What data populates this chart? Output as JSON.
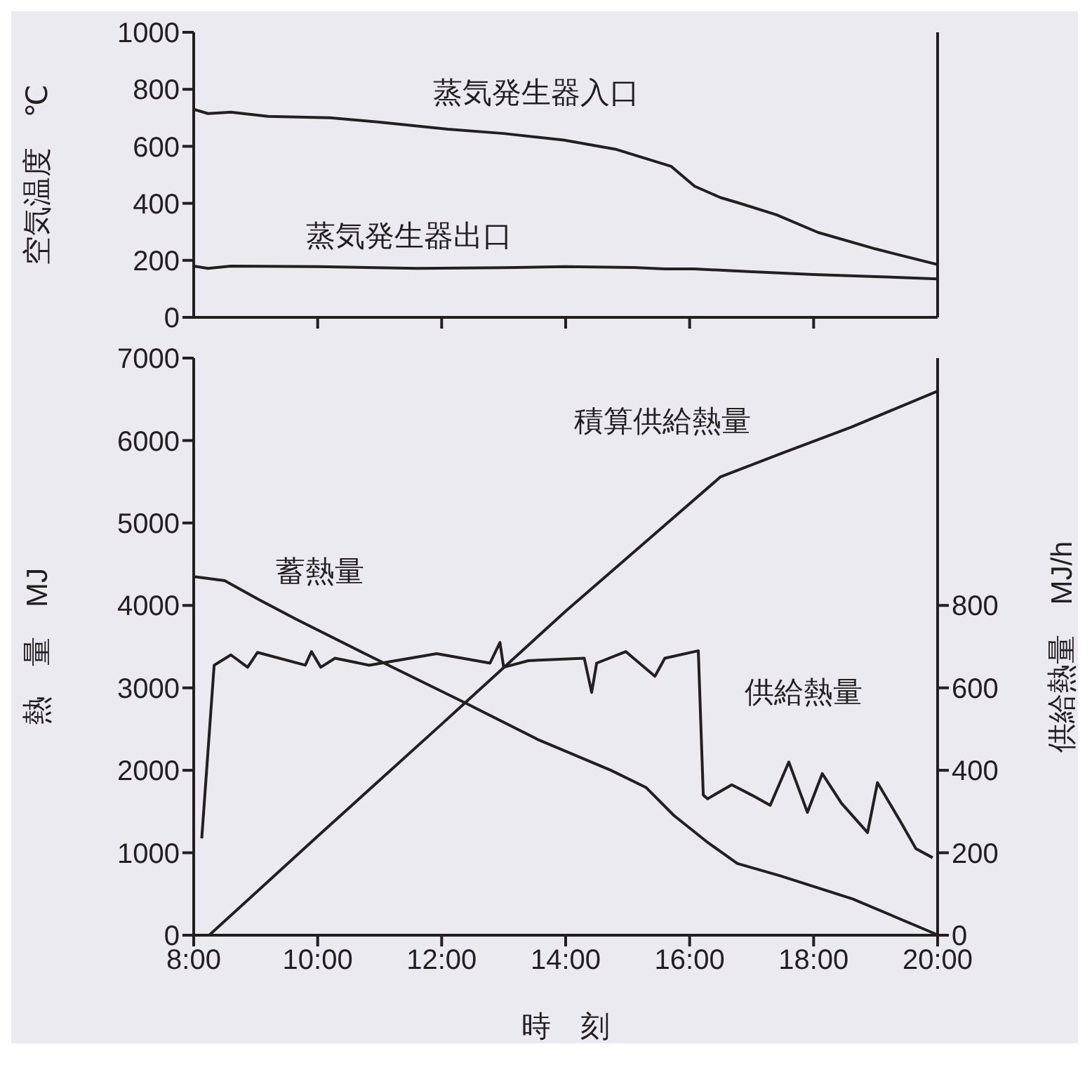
{
  "chart_data": [
    {
      "type": "line",
      "ylabel": "空気温度　℃",
      "xlim": [
        8,
        20
      ],
      "xticks": [
        {
          "value": 10,
          "label": null
        },
        {
          "value": 12,
          "label": null
        },
        {
          "value": 14,
          "label": null
        },
        {
          "value": 16,
          "label": null
        },
        {
          "value": 18,
          "label": null
        }
      ],
      "ylim": [
        0,
        1000
      ],
      "yticks": [
        0,
        200,
        400,
        600,
        800,
        1000
      ],
      "tick_labels": "y",
      "marker": "none",
      "line_style": "solid",
      "series": [
        {
          "name": "蒸気発生器入口",
          "color": "#231f20",
          "x": [
            8,
            8.23,
            8.6,
            9.2,
            10.2,
            11,
            12.1,
            13,
            13.97,
            14.8,
            15.7,
            16.08,
            16.5,
            16.78,
            17.4,
            18.07,
            19,
            20
          ],
          "values": [
            730,
            715,
            720,
            705,
            700,
            685,
            660,
            645,
            622,
            590,
            530,
            460,
            420,
            402,
            360,
            298,
            240,
            185
          ]
        },
        {
          "name": "蒸気発生器出口",
          "color": "#231f20",
          "x": [
            8,
            8.23,
            8.6,
            10,
            11.6,
            13,
            14,
            15.1,
            15.6,
            16.08,
            17,
            18,
            19,
            20
          ],
          "values": [
            180,
            172,
            180,
            178,
            172,
            174,
            178,
            175,
            170,
            170,
            160,
            150,
            143,
            135
          ]
        }
      ]
    },
    {
      "type": "line",
      "xlabel": "時　刻",
      "ylabel": "熱　量　MJ",
      "y2label": "供給熱量　MJ/h",
      "xlim": [
        8,
        20
      ],
      "xticks": [
        {
          "value": 8,
          "label": "8:00"
        },
        {
          "value": 10,
          "label": "10:00"
        },
        {
          "value": 12,
          "label": "12:00"
        },
        {
          "value": 14,
          "label": "14:00"
        },
        {
          "value": 16,
          "label": "16:00"
        },
        {
          "value": 18,
          "label": "18:00"
        },
        {
          "value": 20,
          "label": "20:00"
        }
      ],
      "ylim": [
        0,
        7000
      ],
      "yticks": [
        0,
        1000,
        2000,
        3000,
        4000,
        5000,
        6000,
        7000
      ],
      "y2lim": [
        0,
        1400
      ],
      "y2ticks": [
        0,
        200,
        400,
        600,
        800
      ],
      "marker": "none",
      "line_style": "solid",
      "series": [
        {
          "name": "積算供給熱量",
          "color": "#231f20",
          "x": [
            8.25,
            10,
            12,
            14,
            16.5,
            17.5,
            18.6,
            19.3,
            20
          ],
          "values": [
            0,
            1200,
            2560,
            3930,
            5560,
            5850,
            6160,
            6380,
            6600
          ]
        },
        {
          "name": "蓄熱量",
          "color": "#231f20",
          "x": [
            8,
            8.5,
            9.03,
            9.66,
            10.83,
            12.4,
            13.56,
            14.73,
            15.3,
            15.75,
            16.3,
            16.77,
            17.46,
            18.63,
            19.92,
            20
          ],
          "values": [
            4350,
            4300,
            4080,
            3830,
            3390,
            2810,
            2370,
            2000,
            1790,
            1450,
            1120,
            870,
            720,
            440,
            30,
            0
          ]
        },
        {
          "name": "供給熱量",
          "color": "#231f20",
          "axis": "y2",
          "x": [
            8.13,
            8.33,
            8.6,
            8.87,
            9.03,
            9.8,
            9.9,
            10.05,
            10.28,
            10.83,
            11.92,
            12.78,
            12.94,
            13.0,
            13.4,
            14.3,
            14.42,
            14.5,
            14.97,
            15.44,
            15.6,
            16.14,
            16.22,
            16.29,
            16.68,
            17.0,
            17.3,
            17.6,
            17.9,
            18.14,
            18.45,
            18.87,
            19.03,
            19.4,
            19.65,
            19.92
          ],
          "values": [
            235,
            655,
            680,
            650,
            686,
            655,
            688,
            650,
            672,
            655,
            683,
            660,
            710,
            650,
            666,
            672,
            589,
            660,
            688,
            628,
            672,
            690,
            340,
            331,
            365,
            340,
            315,
            420,
            298,
            392,
            320,
            249,
            370,
            276,
            210,
            188
          ]
        }
      ]
    }
  ]
}
